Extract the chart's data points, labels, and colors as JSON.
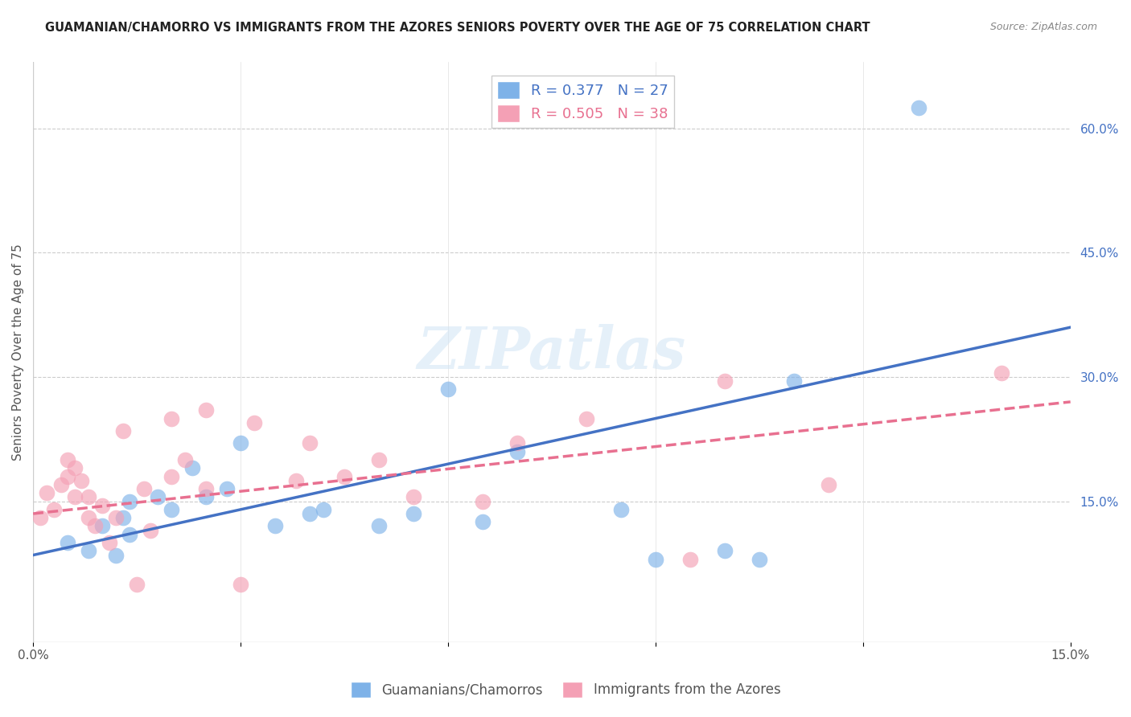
{
  "title": "GUAMANIAN/CHAMORRO VS IMMIGRANTS FROM THE AZORES SENIORS POVERTY OVER THE AGE OF 75 CORRELATION CHART",
  "source": "Source: ZipAtlas.com",
  "ylabel": "Seniors Poverty Over the Age of 75",
  "xlabel": "",
  "xlim": [
    0,
    0.15
  ],
  "ylim": [
    -0.02,
    0.68
  ],
  "xticks": [
    0.0,
    0.03,
    0.06,
    0.09,
    0.12,
    0.15
  ],
  "xtick_labels": [
    "0.0%",
    "",
    "",
    "",
    "",
    "15.0%"
  ],
  "yticks_right": [
    0.15,
    0.3,
    0.45,
    0.6
  ],
  "ytick_right_labels": [
    "15.0%",
    "30.0%",
    "45.0%",
    "60.0%"
  ],
  "legend_r1": "R = 0.377   N = 27",
  "legend_r2": "R = 0.505   N = 38",
  "blue_color": "#7EB2E8",
  "pink_color": "#F4A0B5",
  "line_blue": "#4472C4",
  "line_pink": "#E87090",
  "watermark": "ZIPatlas",
  "blue_x": [
    0.005,
    0.008,
    0.01,
    0.012,
    0.013,
    0.014,
    0.014,
    0.018,
    0.02,
    0.023,
    0.025,
    0.028,
    0.03,
    0.035,
    0.04,
    0.042,
    0.05,
    0.055,
    0.06,
    0.065,
    0.07,
    0.085,
    0.09,
    0.1,
    0.105,
    0.11,
    0.128
  ],
  "blue_y": [
    0.1,
    0.09,
    0.12,
    0.085,
    0.13,
    0.15,
    0.11,
    0.155,
    0.14,
    0.19,
    0.155,
    0.165,
    0.22,
    0.12,
    0.135,
    0.14,
    0.12,
    0.135,
    0.285,
    0.125,
    0.21,
    0.14,
    0.08,
    0.09,
    0.08,
    0.295,
    0.625
  ],
  "pink_x": [
    0.001,
    0.002,
    0.003,
    0.004,
    0.005,
    0.005,
    0.006,
    0.006,
    0.007,
    0.008,
    0.008,
    0.009,
    0.01,
    0.011,
    0.012,
    0.013,
    0.015,
    0.016,
    0.017,
    0.02,
    0.02,
    0.022,
    0.025,
    0.025,
    0.03,
    0.032,
    0.038,
    0.04,
    0.045,
    0.05,
    0.055,
    0.065,
    0.07,
    0.08,
    0.095,
    0.1,
    0.115,
    0.14
  ],
  "pink_y": [
    0.13,
    0.16,
    0.14,
    0.17,
    0.18,
    0.2,
    0.155,
    0.19,
    0.175,
    0.155,
    0.13,
    0.12,
    0.145,
    0.1,
    0.13,
    0.235,
    0.05,
    0.165,
    0.115,
    0.18,
    0.25,
    0.2,
    0.165,
    0.26,
    0.05,
    0.245,
    0.175,
    0.22,
    0.18,
    0.2,
    0.155,
    0.15,
    0.22,
    0.25,
    0.08,
    0.295,
    0.17,
    0.305
  ],
  "blue_line_x": [
    0.0,
    0.15
  ],
  "blue_line_y": [
    0.085,
    0.36
  ],
  "pink_line_x": [
    0.0,
    0.15
  ],
  "pink_line_y": [
    0.135,
    0.27
  ],
  "dot_size": 200
}
